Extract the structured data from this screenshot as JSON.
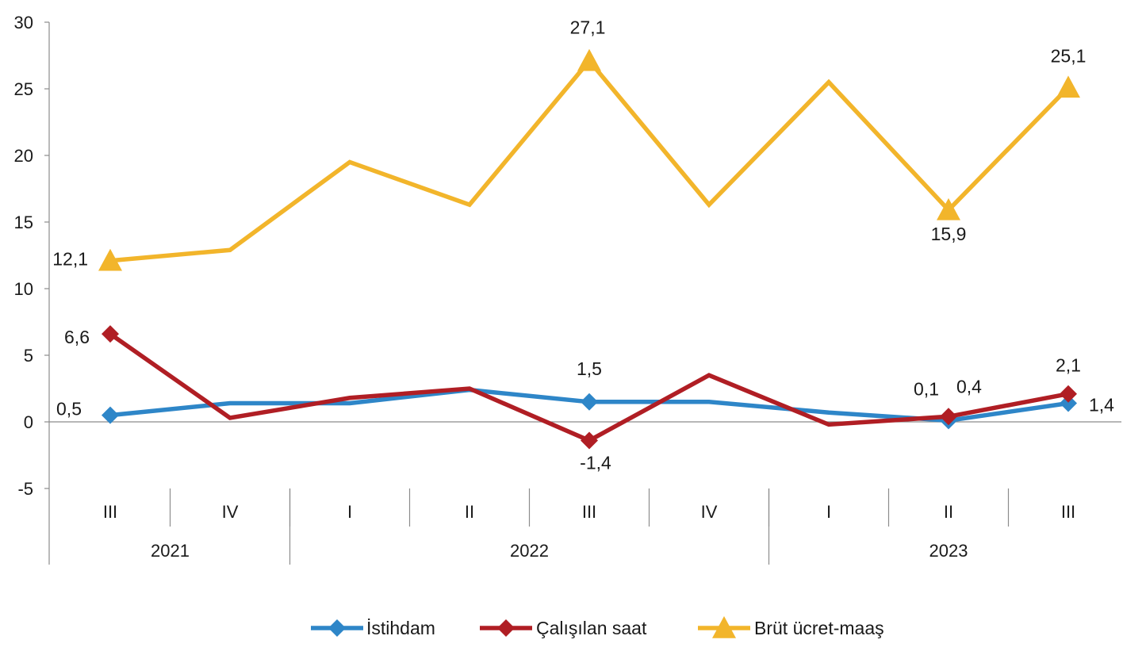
{
  "chart_data": {
    "type": "line",
    "title": "",
    "xlabel": "",
    "ylabel": "",
    "ylim": [
      -5,
      30
    ],
    "yticks": [
      -5,
      0,
      5,
      10,
      15,
      20,
      25,
      30
    ],
    "ytick_labels": [
      "-5",
      "0",
      "5",
      "10",
      "15",
      "20",
      "25",
      "30"
    ],
    "grid": false,
    "legend_position": "bottom",
    "categories": [
      "III",
      "IV",
      "I",
      "II",
      "III",
      "IV",
      "I",
      "II",
      "III"
    ],
    "year_groups": [
      {
        "label": "2021",
        "start": 0,
        "end": 1
      },
      {
        "label": "2022",
        "start": 2,
        "end": 5
      },
      {
        "label": "2023",
        "start": 6,
        "end": 8
      }
    ],
    "series": [
      {
        "name": "İstihdam",
        "color": "#2e86c8",
        "marker": "diamond",
        "values": [
          0.5,
          1.4,
          1.4,
          2.4,
          1.5,
          1.5,
          0.7,
          0.1,
          1.4
        ],
        "labels": [
          {
            "index": 0,
            "text": "0,5"
          },
          {
            "index": 4,
            "text": "1,5"
          },
          {
            "index": 7,
            "text": "0,1"
          },
          {
            "index": 8,
            "text": "1,4"
          }
        ]
      },
      {
        "name": "Çalışılan saat",
        "color": "#b01e24",
        "marker": "diamond",
        "values": [
          6.6,
          0.3,
          1.8,
          2.5,
          -1.4,
          3.5,
          -0.2,
          0.4,
          2.1
        ],
        "labels": [
          {
            "index": 0,
            "text": "6,6"
          },
          {
            "index": 4,
            "text": "-1,4"
          },
          {
            "index": 7,
            "text": "0,4"
          },
          {
            "index": 8,
            "text": "2,1"
          }
        ]
      },
      {
        "name": "Brüt ücret-maaş",
        "color": "#f2b52b",
        "marker": "triangle",
        "values": [
          12.1,
          12.9,
          19.5,
          16.3,
          27.1,
          16.3,
          25.5,
          15.9,
          25.1
        ],
        "labels": [
          {
            "index": 0,
            "text": "12,1"
          },
          {
            "index": 4,
            "text": "27,1"
          },
          {
            "index": 7,
            "text": "15,9"
          },
          {
            "index": 8,
            "text": "25,1"
          }
        ]
      }
    ]
  }
}
